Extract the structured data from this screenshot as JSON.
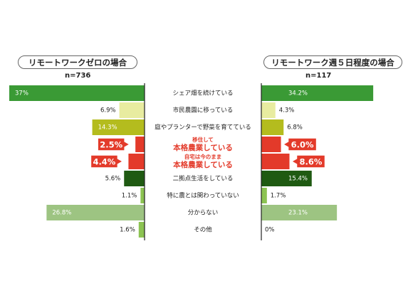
{
  "chart_data": [
    {
      "type": "bar",
      "title": "リモートワークゼロの場合",
      "n_label": "n=736",
      "categories": [
        "シェア畑を続けている",
        "市民農園に移っている",
        "庭やプランターで野菜を育てている",
        "移住して本格農業している",
        "自宅は今のまま本格農業している",
        "二拠点生活をしている",
        "特に農とは関わっていない",
        "分からない",
        "その他"
      ],
      "values": [
        37,
        6.9,
        14.3,
        2.5,
        4.4,
        5.6,
        1.1,
        26.8,
        1.6
      ],
      "value_labels": [
        "37%",
        "6.9%",
        "14.3%",
        "2.5%",
        "4.4%",
        "5.6%",
        "1.1%",
        "26.8%",
        "1.6%"
      ],
      "xlim": [
        0,
        37
      ],
      "orientation": "horizontal-leftward"
    },
    {
      "type": "bar",
      "title": "リモートワーク週５日程度の場合",
      "n_label": "n=117",
      "categories": [
        "シェア畑を続けている",
        "市民農園に移っている",
        "庭やプランターで野菜を育てている",
        "移住して本格農業している",
        "自宅は今のまま本格農業している",
        "二拠点生活をしている",
        "特に農とは関わっていない",
        "分からない",
        "その他"
      ],
      "values": [
        34.2,
        4.3,
        6.8,
        6.0,
        8.6,
        15.4,
        1.7,
        23.1,
        0
      ],
      "value_labels": [
        "34.2%",
        "4.3%",
        "6.8%",
        "6.0%",
        "8.6%",
        "15.4%",
        "1.7%",
        "23.1%",
        "0%"
      ],
      "xlim": [
        0,
        37
      ],
      "orientation": "horizontal-rightward"
    }
  ],
  "rows": [
    {
      "lines": [
        "シェア畑を続けている"
      ],
      "color": "#3a9a35",
      "emphasis": false
    },
    {
      "lines": [
        "市民農園に移っている"
      ],
      "color": "#e8eca0",
      "emphasis": false
    },
    {
      "lines": [
        "庭やプランターで野菜を育てている"
      ],
      "color": "#b4bc1e",
      "emphasis": false
    },
    {
      "lines": [
        "移住して",
        "本格農業している"
      ],
      "color": "#e33a2a",
      "emphasis": true
    },
    {
      "lines": [
        "自宅は今のまま",
        "本格農業している"
      ],
      "color": "#e33a2a",
      "emphasis": true
    },
    {
      "lines": [
        "二拠点生活をしている"
      ],
      "color": "#1f5a12",
      "emphasis": false
    },
    {
      "lines": [
        "特に農とは関わっていない"
      ],
      "color": "#8cc352",
      "emphasis": false
    },
    {
      "lines": [
        "分からない"
      ],
      "color": "#9dc482",
      "emphasis": false
    },
    {
      "lines": [
        "その他"
      ],
      "color": "#8cc352",
      "emphasis": false
    }
  ],
  "colors": {
    "text": "#222222",
    "emphasis_text": "#e33a2a",
    "axis": "#222222"
  }
}
